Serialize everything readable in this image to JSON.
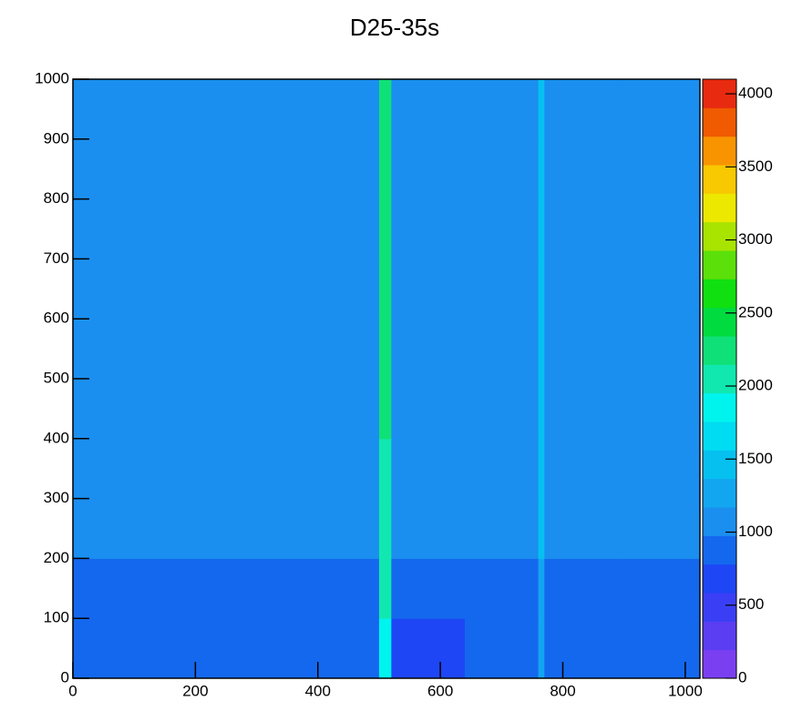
{
  "chart_data": {
    "type": "heatmap",
    "title": "D25-35s",
    "xbins": [
      0,
      128,
      256,
      384,
      500,
      520,
      640,
      760,
      770,
      900,
      1024
    ],
    "ybins": [
      0,
      100,
      200,
      300,
      400,
      500,
      600,
      700,
      800,
      900,
      1000
    ],
    "z": [
      [
        800,
        850,
        850,
        850,
        1900,
        750,
        800,
        1300,
        800,
        800
      ],
      [
        950,
        950,
        950,
        950,
        2000,
        900,
        950,
        1350,
        950,
        950
      ],
      [
        1050,
        1100,
        1050,
        1050,
        2100,
        1000,
        1050,
        1400,
        1000,
        1050
      ],
      [
        1050,
        1100,
        1050,
        1050,
        2100,
        1000,
        1050,
        1400,
        1000,
        1050
      ],
      [
        1100,
        1100,
        1050,
        1050,
        2150,
        1050,
        1050,
        1400,
        1050,
        1050
      ],
      [
        1100,
        1100,
        1100,
        1100,
        2150,
        1050,
        1100,
        1400,
        1050,
        1100
      ],
      [
        1100,
        1100,
        1100,
        1100,
        2150,
        1050,
        1100,
        1450,
        1050,
        1100
      ],
      [
        1100,
        1150,
        1100,
        1100,
        2200,
        1100,
        1100,
        1450,
        1100,
        1100
      ],
      [
        1150,
        1150,
        1100,
        1100,
        2200,
        1100,
        1100,
        1450,
        1100,
        1100
      ],
      [
        1150,
        1150,
        1100,
        1100,
        2200,
        1100,
        1100,
        1450,
        1100,
        1150
      ]
    ],
    "xlim": [
      0,
      1024
    ],
    "xticks": [
      0,
      200,
      400,
      600,
      800,
      1000
    ],
    "ylim": [
      0,
      1000
    ],
    "yticks": [
      0,
      100,
      200,
      300,
      400,
      500,
      600,
      700,
      800,
      900,
      1000
    ],
    "zlim": [
      0,
      4100
    ],
    "zticks": [
      0,
      500,
      1000,
      1500,
      2000,
      2500,
      3000,
      3500,
      4000
    ],
    "palette": [
      "#7b3ff2",
      "#5b3df2",
      "#3a3ff5",
      "#1e46f5",
      "#1468ee",
      "#1a8ff0",
      "#12a6f0",
      "#06c0f0",
      "#00dcf2",
      "#00f4ee",
      "#10e8b0",
      "#10e078",
      "#00dc40",
      "#10e010",
      "#5ce00a",
      "#a8e400",
      "#ece800",
      "#f8c800",
      "#f89400",
      "#f05a00",
      "#e82a10"
    ]
  }
}
